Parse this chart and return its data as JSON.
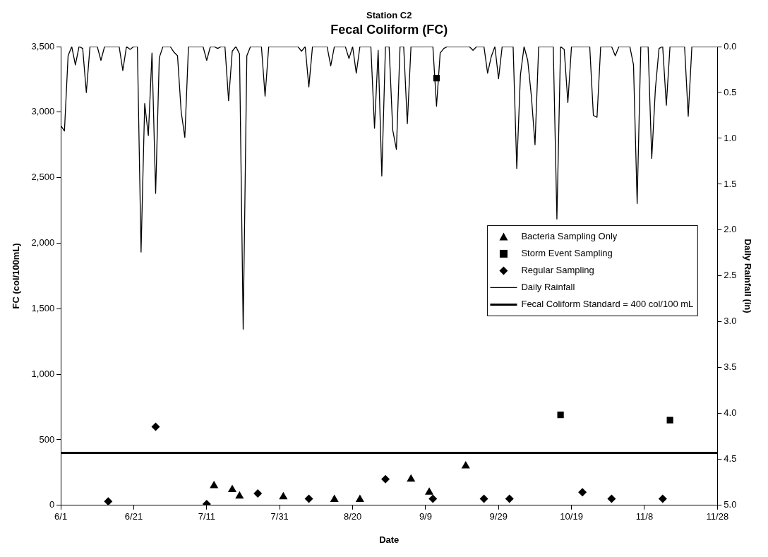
{
  "chart_data": {
    "type": "scatter",
    "title": "Fecal Coliform (FC)",
    "subtitle": "Station C2",
    "xlabel": "Date",
    "ylabel": "FC (col/100mL)",
    "y2label": "Daily Rainfall (in)",
    "xlim": [
      "--06-01",
      "--11-28"
    ],
    "xticks": [
      {
        "value": "--06-01",
        "label": "6/1"
      },
      {
        "value": "--06-21",
        "label": "6/21"
      },
      {
        "value": "--07-11",
        "label": "7/11"
      },
      {
        "value": "--07-31",
        "label": "7/31"
      },
      {
        "value": "--08-20",
        "label": "8/20"
      },
      {
        "value": "--09-09",
        "label": "9/9"
      },
      {
        "value": "--09-29",
        "label": "9/29"
      },
      {
        "value": "--10-19",
        "label": "10/19"
      },
      {
        "value": "--11-08",
        "label": "11/8"
      },
      {
        "value": "--11-28",
        "label": "11/28"
      }
    ],
    "ylim": [
      0,
      3500
    ],
    "yticks": [
      0,
      {
        "value": 500,
        "label": "500"
      },
      {
        "value": 1000,
        "label": "1,000"
      },
      {
        "value": 1500,
        "label": "1,500"
      },
      {
        "value": 2000,
        "label": "2,000"
      },
      {
        "value": 2500,
        "label": "2,500"
      },
      {
        "value": 3000,
        "label": "3,000"
      },
      {
        "value": 3500,
        "label": "3,500"
      }
    ],
    "y2lim": [
      5,
      0
    ],
    "y2ticks": [
      {
        "value": 0,
        "label": "0.0"
      },
      0.5,
      {
        "value": 1,
        "label": "1.0"
      },
      1.5,
      {
        "value": 2,
        "label": "2.0"
      },
      2.5,
      {
        "value": 3,
        "label": "3.0"
      },
      3.5,
      {
        "value": 4,
        "label": "4.0"
      },
      4.5,
      {
        "value": 5,
        "label": "5.0"
      }
    ],
    "grid": false,
    "legend": "right",
    "ref_lines": [
      {
        "axis": "y",
        "value": 400,
        "label": "Fecal Coliform Standard = 400 col/100 mL",
        "color": "#000000"
      }
    ],
    "series": [
      {
        "name": "Bacteria Sampling Only",
        "marker": "triangle",
        "color": "#000000",
        "x": [
          "--07-13",
          "--07-18",
          "--07-20",
          "--08-01",
          "--08-15",
          "--08-22",
          "--09-05",
          "--09-10",
          "--09-20"
        ],
        "values": [
          150,
          120,
          70,
          65,
          45,
          45,
          200,
          100,
          300
        ]
      },
      {
        "name": "Storm Event Sampling",
        "marker": "square",
        "color": "#000000",
        "x": [
          "--09-12",
          "--10-16",
          "--11-15"
        ],
        "values": [
          3260,
          690,
          650
        ]
      },
      {
        "name": "Regular Sampling",
        "marker": "diamond",
        "color": "#000000",
        "x": [
          "--06-14",
          "--06-27",
          "--07-11",
          "--07-25",
          "--08-08",
          "--08-29",
          "--09-11",
          "--09-25",
          "--10-02",
          "--10-22",
          "--10-30",
          "--11-13"
        ],
        "values": [
          30,
          600,
          10,
          90,
          50,
          200,
          50,
          50,
          50,
          100,
          50,
          50
        ]
      },
      {
        "name": "Daily Rainfall",
        "type": "line",
        "axis": "y2",
        "marker": "none",
        "line_style": "solid",
        "color": "#000000",
        "x": [
          "--06-01",
          "--06-02",
          "--06-03",
          "--06-04",
          "--06-05",
          "--06-06",
          "--06-07",
          "--06-08",
          "--06-09",
          "--06-11",
          "--06-12",
          "--06-13",
          "--06-17",
          "--06-18",
          "--06-19",
          "--06-20",
          "--06-21",
          "--06-22",
          "--06-23",
          "--06-24",
          "--06-25",
          "--06-26",
          "--06-27",
          "--06-28",
          "--06-29",
          "--07-01",
          "--07-02",
          "--07-03",
          "--07-04",
          "--07-05",
          "--07-06",
          "--07-10",
          "--07-11",
          "--07-12",
          "--07-13",
          "--07-14",
          "--07-15",
          "--07-16",
          "--07-17",
          "--07-18",
          "--07-19",
          "--07-20",
          "--07-21",
          "--07-22",
          "--07-23",
          "--07-26",
          "--07-27",
          "--07-28",
          "--08-05",
          "--08-06",
          "--08-07",
          "--08-08",
          "--08-09",
          "--08-13",
          "--08-14",
          "--08-15",
          "--08-18",
          "--08-19",
          "--08-20",
          "--08-21",
          "--08-22",
          "--08-23",
          "--08-25",
          "--08-26",
          "--08-27",
          "--08-28",
          "--08-29",
          "--08-30",
          "--08-31",
          "--09-01",
          "--09-02",
          "--09-03",
          "--09-04",
          "--09-05",
          "--09-11",
          "--09-12",
          "--09-13",
          "--09-14",
          "--09-15",
          "--09-21",
          "--09-22",
          "--09-23",
          "--09-25",
          "--09-26",
          "--09-27",
          "--09-28",
          "--09-29",
          "--09-30",
          "--10-03",
          "--10-04",
          "--10-05",
          "--10-06",
          "--10-07",
          "--10-08",
          "--10-09",
          "--10-10",
          "--10-14",
          "--10-15",
          "--10-16",
          "--10-17",
          "--10-18",
          "--10-19",
          "--10-24",
          "--10-25",
          "--10-26",
          "--10-27",
          "--10-30",
          "--10-31",
          "--11-01",
          "--11-04",
          "--11-05",
          "--11-06",
          "--11-07",
          "--11-09",
          "--11-10",
          "--11-11",
          "--11-12",
          "--11-13",
          "--11-14",
          "--11-15",
          "--11-19",
          "--11-20",
          "--11-21",
          "--11-28"
        ],
        "values": [
          0.86,
          0.92,
          0.1,
          0,
          0.2,
          0,
          0.02,
          0.5,
          0,
          0,
          0.15,
          0,
          0,
          0.26,
          0,
          0.03,
          0,
          0,
          2.24,
          0.62,
          0.97,
          0.07,
          1.6,
          0.12,
          0,
          0,
          0.06,
          0.1,
          0.71,
          0.99,
          0,
          0,
          0.15,
          0,
          0,
          0.02,
          0,
          0,
          0.59,
          0.05,
          0,
          0.08,
          3.08,
          0.1,
          0,
          0,
          0.54,
          0,
          0,
          0.05,
          0,
          0.44,
          0,
          0,
          0.21,
          0,
          0,
          0.13,
          0,
          0.29,
          0,
          0,
          0,
          0.89,
          0.04,
          1.41,
          0,
          0,
          0.91,
          1.12,
          0,
          0,
          0.84,
          0,
          0,
          0.65,
          0.07,
          0.02,
          0,
          0,
          0.04,
          0,
          0,
          0.29,
          0.11,
          0,
          0.35,
          0,
          0,
          1.33,
          0.31,
          0,
          0.15,
          0.54,
          1.07,
          0,
          0,
          1.88,
          0,
          0.03,
          0.61,
          0,
          0,
          0.75,
          0.77,
          0,
          0,
          0.1,
          0,
          0,
          0.2,
          1.71,
          0,
          0,
          1.22,
          0.46,
          0.02,
          0,
          0.64,
          0,
          0,
          0.76,
          0,
          0
        ]
      }
    ]
  }
}
